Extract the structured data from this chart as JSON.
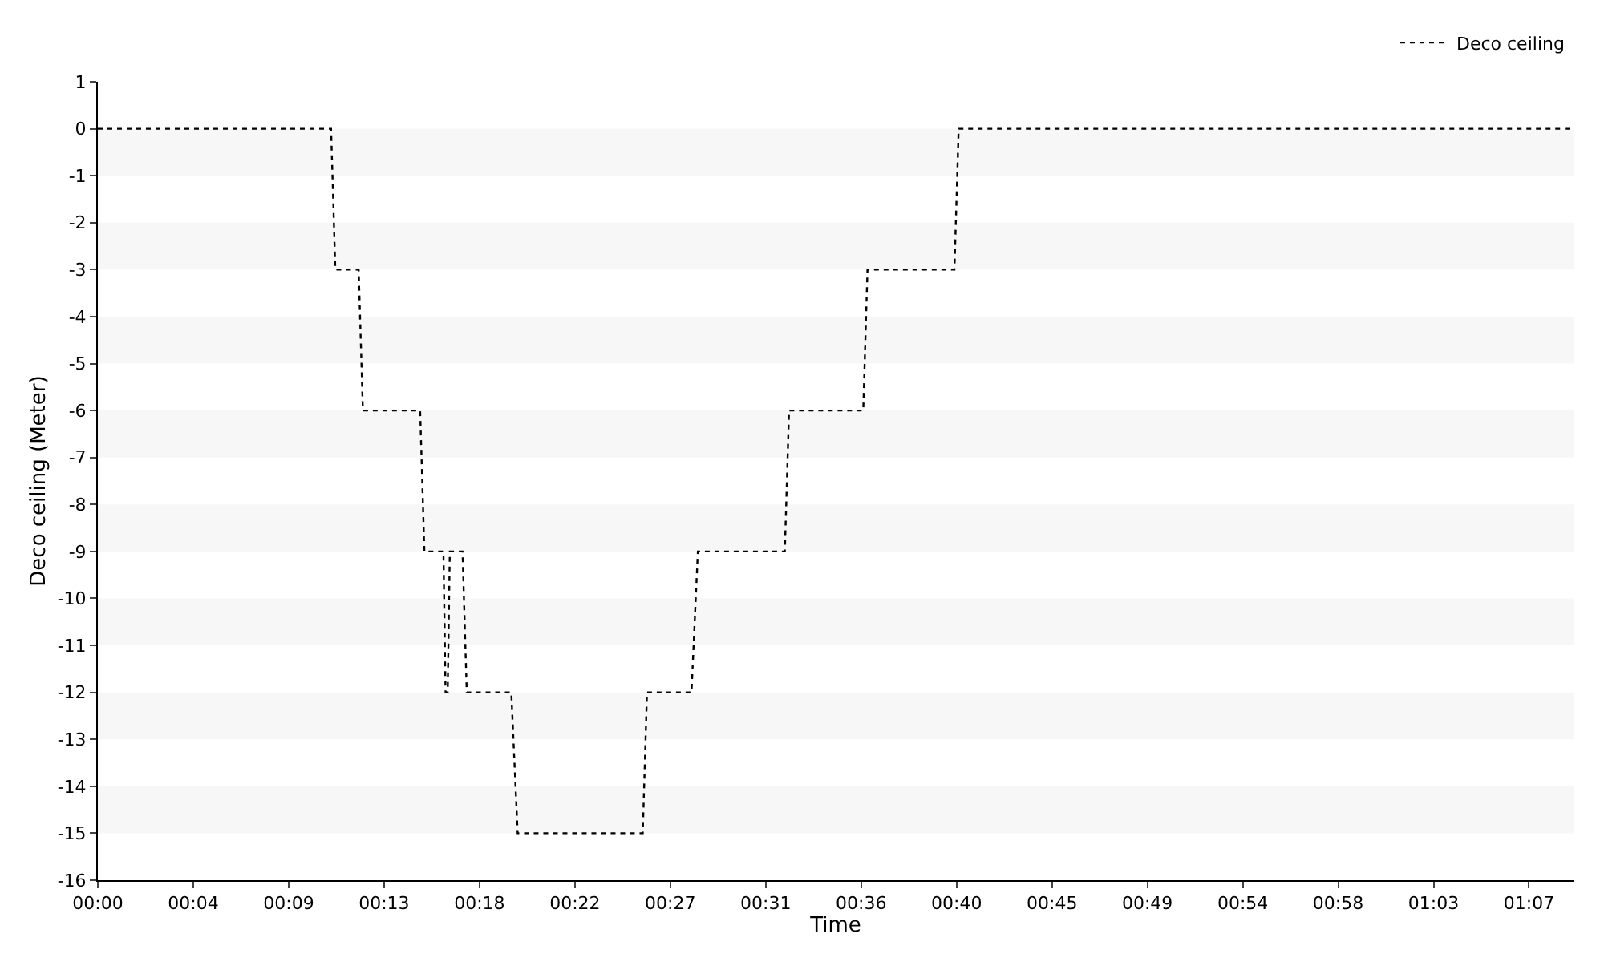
{
  "chart_data": {
    "type": "line",
    "xlabel": "Time",
    "ylabel": "Deco ceiling (Meter)",
    "x": [
      0,
      11.0,
      11.2,
      12.3,
      12.5,
      15.2,
      15.4,
      16.3,
      16.4,
      16.5,
      16.6,
      17.2,
      17.4,
      19.5,
      19.8,
      25.7,
      25.9,
      28.0,
      28.3,
      32.4,
      32.6,
      36.1,
      36.3,
      40.4,
      40.6,
      69.6
    ],
    "series": [
      {
        "name": "Deco ceiling",
        "color": "#000000",
        "values": [
          0,
          0,
          -3,
          -3,
          -6,
          -6,
          -9,
          -9,
          -12,
          -12,
          -9,
          -9,
          -12,
          -12,
          -15,
          -15,
          -12,
          -12,
          -9,
          -9,
          -6,
          -6,
          -3,
          -3,
          0,
          0
        ]
      }
    ],
    "xlim": [
      0,
      69.6
    ],
    "xticks": [
      {
        "value": 0,
        "label": "00:00"
      },
      {
        "value": 4.5,
        "label": "00:04"
      },
      {
        "value": 9,
        "label": "00:09"
      },
      {
        "value": 13.5,
        "label": "00:13"
      },
      {
        "value": 18,
        "label": "00:18"
      },
      {
        "value": 22.5,
        "label": "00:22"
      },
      {
        "value": 27,
        "label": "00:27"
      },
      {
        "value": 31.5,
        "label": "00:31"
      },
      {
        "value": 36,
        "label": "00:36"
      },
      {
        "value": 40.5,
        "label": "00:40"
      },
      {
        "value": 45,
        "label": "00:45"
      },
      {
        "value": 49.5,
        "label": "00:49"
      },
      {
        "value": 54,
        "label": "00:54"
      },
      {
        "value": 58.5,
        "label": "00:58"
      },
      {
        "value": 63,
        "label": "01:03"
      },
      {
        "value": 67.5,
        "label": "01:07"
      }
    ],
    "ylim": [
      -16,
      1
    ],
    "yticks": [
      1,
      0,
      -1,
      -2,
      -3,
      -4,
      -5,
      -6,
      -7,
      -8,
      -9,
      -10,
      -11,
      -12,
      -13,
      -14,
      -15,
      -16
    ],
    "bands": [
      {
        "axis": "y",
        "from": 0,
        "to": -1,
        "color": "#f7f7f7"
      },
      {
        "axis": "y",
        "from": -2,
        "to": -3,
        "color": "#f7f7f7"
      },
      {
        "axis": "y",
        "from": -4,
        "to": -5,
        "color": "#f7f7f7"
      },
      {
        "axis": "y",
        "from": -6,
        "to": -7,
        "color": "#f7f7f7"
      },
      {
        "axis": "y",
        "from": -8,
        "to": -9,
        "color": "#f7f7f7"
      },
      {
        "axis": "y",
        "from": -10,
        "to": -11,
        "color": "#f7f7f7"
      },
      {
        "axis": "y",
        "from": -12,
        "to": -13,
        "color": "#f7f7f7"
      },
      {
        "axis": "y",
        "from": -14,
        "to": -15,
        "color": "#f7f7f7"
      }
    ],
    "legend": "top right",
    "line_style": "dotted",
    "marker": "none"
  }
}
